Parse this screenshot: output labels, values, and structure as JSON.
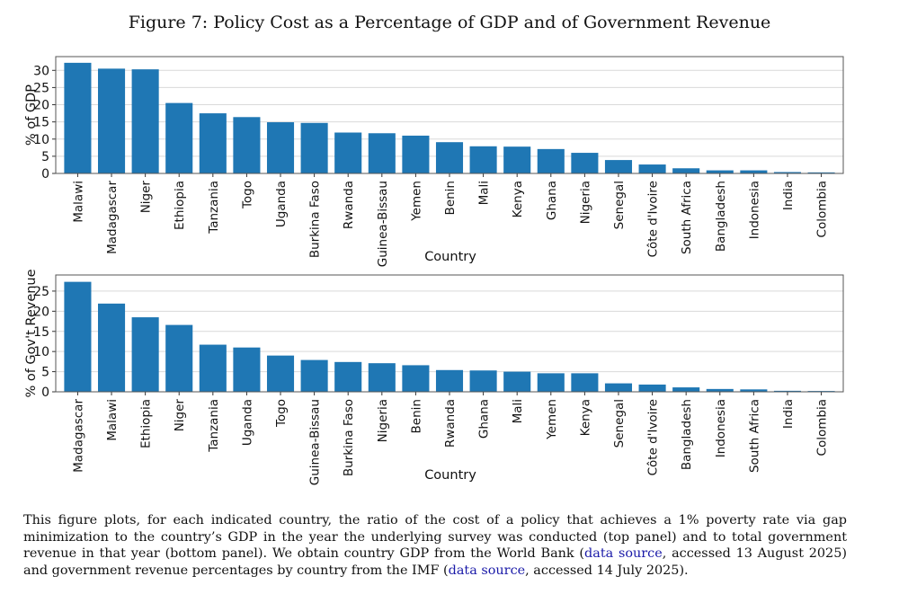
{
  "figure_title": "Figure 7: Policy Cost as a Percentage of GDP and of Government Revenue",
  "colors": {
    "bar": "#1f77b4",
    "grid": "#d9d9d9",
    "axis": "#333333"
  },
  "chart_data": [
    {
      "type": "bar",
      "title": "",
      "xlabel": "Country",
      "ylabel": "% of GDP",
      "ylim": [
        0,
        34
      ],
      "yticks": [
        0,
        5,
        10,
        15,
        20,
        25,
        30
      ],
      "grid": true,
      "categories": [
        "Malawi",
        "Madagascar",
        "Niger",
        "Ethiopia",
        "Tanzania",
        "Togo",
        "Uganda",
        "Burkina Faso",
        "Rwanda",
        "Guinea-Bissau",
        "Yemen",
        "Benin",
        "Mali",
        "Kenya",
        "Ghana",
        "Nigeria",
        "Senegal",
        "Côte d'Ivoire",
        "South Africa",
        "Bangladesh",
        "Indonesia",
        "India",
        "Colombia"
      ],
      "values": [
        32.2,
        30.5,
        30.3,
        20.5,
        17.5,
        16.4,
        14.9,
        14.7,
        11.9,
        11.7,
        11.0,
        9.1,
        7.9,
        7.8,
        7.1,
        6.0,
        3.9,
        2.6,
        1.5,
        0.9,
        0.9,
        0.4,
        0.3
      ]
    },
    {
      "type": "bar",
      "title": "",
      "xlabel": "Country",
      "ylabel": "% of Gov't Revenue",
      "ylim": [
        0,
        29
      ],
      "yticks": [
        0,
        5,
        10,
        15,
        20,
        25
      ],
      "grid": true,
      "categories": [
        "Madagascar",
        "Malawi",
        "Ethiopia",
        "Niger",
        "Tanzania",
        "Uganda",
        "Togo",
        "Guinea-Bissau",
        "Burkina Faso",
        "Nigeria",
        "Benin",
        "Rwanda",
        "Ghana",
        "Mali",
        "Yemen",
        "Kenya",
        "Senegal",
        "Côte d'Ivoire",
        "Bangladesh",
        "Indonesia",
        "South Africa",
        "India",
        "Colombia"
      ],
      "values": [
        27.3,
        21.9,
        18.5,
        16.6,
        11.7,
        11.0,
        9.0,
        7.9,
        7.4,
        7.1,
        6.6,
        5.4,
        5.3,
        5.0,
        4.6,
        4.6,
        2.1,
        1.8,
        1.1,
        0.7,
        0.6,
        0.25,
        0.2
      ]
    }
  ],
  "caption": {
    "part1": "This figure plots, for each indicated country, the ratio of the cost of a policy that achieves a 1% poverty rate via gap minimization to the country’s GDP in the year the underlying survey was conducted (top panel) and to total government revenue in that year (bottom panel). We obtain country GDP from the World Bank (",
    "link1": "data source",
    "part2": ", accessed 13 August 2025) and government revenue percentages by country from the IMF (",
    "link2": "data source",
    "part3": ", accessed 14 July 2025)."
  }
}
